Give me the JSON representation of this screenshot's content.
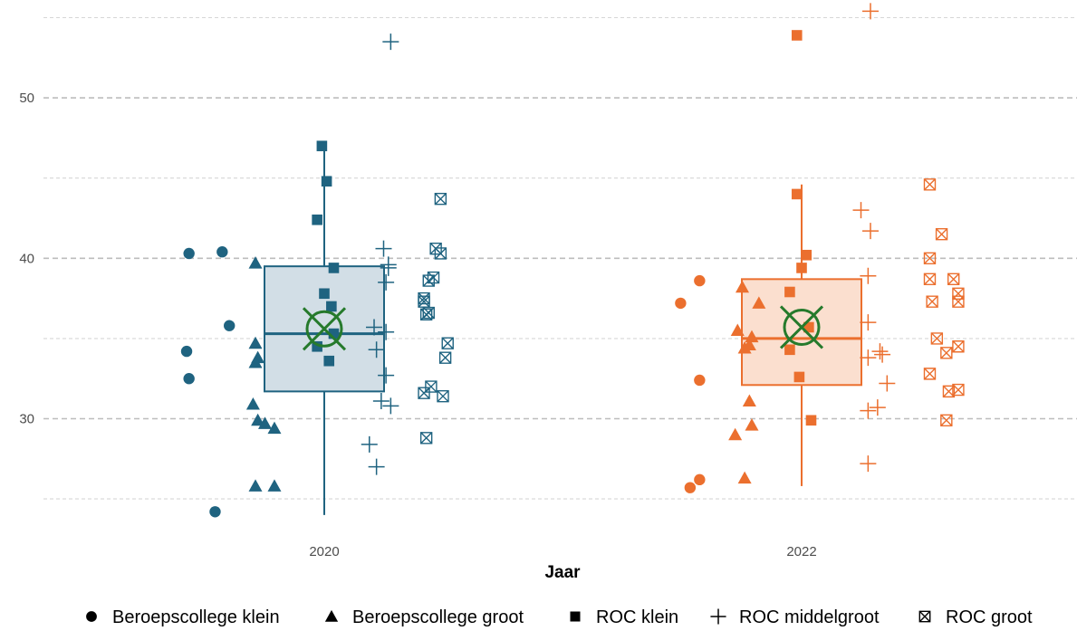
{
  "chart_data": {
    "type": "boxplot-with-jittered-points",
    "xlabel": "Jaar",
    "ylabel": "",
    "ylim": [
      22.5,
      56
    ],
    "y_ticks": [
      30,
      40,
      50
    ],
    "grid": "horizontal-dashed",
    "legend_position": "bottom",
    "colors": {
      "2020": "#1f6380",
      "2022": "#eb6f2e",
      "mean_marker": "#267a2c"
    },
    "series": [
      {
        "name": "Beroepscollege klein",
        "shape": "circle"
      },
      {
        "name": "Beroepscollege groot",
        "shape": "triangle"
      },
      {
        "name": "ROC klein",
        "shape": "square"
      },
      {
        "name": "ROC middelgroot",
        "shape": "plus"
      },
      {
        "name": "ROC groot",
        "shape": "square-cross"
      }
    ],
    "groups": [
      {
        "label": "2020",
        "box": {
          "q1": 31.7,
          "median": 35.3,
          "q3": 39.5,
          "whisker_low": 24.0,
          "whisker_high": 47.0
        },
        "mean": 35.6,
        "points": {
          "Beroepscollege klein": [
            [
              -0.57,
              40.3
            ],
            [
              -0.43,
              40.4
            ],
            [
              -0.4,
              35.8
            ],
            [
              -0.58,
              34.2
            ],
            [
              -0.57,
              32.5
            ],
            [
              -0.46,
              24.2
            ]
          ],
          "Beroepscollege groot": [
            [
              -0.29,
              39.7
            ],
            [
              -0.29,
              34.7
            ],
            [
              -0.28,
              33.8
            ],
            [
              -0.29,
              33.5
            ],
            [
              -0.3,
              30.9
            ],
            [
              -0.28,
              29.9
            ],
            [
              -0.25,
              29.7
            ],
            [
              -0.21,
              29.4
            ],
            [
              -0.29,
              25.8
            ],
            [
              -0.21,
              25.8
            ]
          ],
          "ROC klein": [
            [
              -0.01,
              47.0
            ],
            [
              0.01,
              44.8
            ],
            [
              -0.03,
              42.4
            ],
            [
              0.04,
              39.4
            ],
            [
              0.0,
              37.8
            ],
            [
              0.03,
              37.0
            ],
            [
              0.04,
              35.3
            ],
            [
              -0.03,
              34.5
            ],
            [
              0.02,
              33.6
            ]
          ],
          "ROC middelgroot": [
            [
              0.28,
              53.5
            ],
            [
              0.25,
              40.6
            ],
            [
              0.27,
              39.6
            ],
            [
              0.27,
              39.4
            ],
            [
              0.26,
              38.5
            ],
            [
              0.21,
              35.7
            ],
            [
              0.26,
              35.4
            ],
            [
              0.22,
              34.3
            ],
            [
              0.26,
              32.7
            ],
            [
              0.24,
              31.1
            ],
            [
              0.28,
              30.8
            ],
            [
              0.19,
              28.4
            ],
            [
              0.22,
              27.0
            ]
          ],
          "ROC groot": [
            [
              0.49,
              43.7
            ],
            [
              0.47,
              40.6
            ],
            [
              0.49,
              40.3
            ],
            [
              0.46,
              38.8
            ],
            [
              0.44,
              38.6
            ],
            [
              0.42,
              37.5
            ],
            [
              0.42,
              37.3
            ],
            [
              0.44,
              36.6
            ],
            [
              0.43,
              36.5
            ],
            [
              0.52,
              34.7
            ],
            [
              0.51,
              33.8
            ],
            [
              0.42,
              31.6
            ],
            [
              0.45,
              32.0
            ],
            [
              0.5,
              31.4
            ],
            [
              0.43,
              28.8
            ]
          ]
        }
      },
      {
        "label": "2022",
        "box": {
          "q1": 32.1,
          "median": 35.0,
          "q3": 38.7,
          "whisker_low": 25.8,
          "whisker_high": 44.6
        },
        "mean": 35.7,
        "points": {
          "Beroepscollege klein": [
            [
              -0.51,
              37.2
            ],
            [
              -0.43,
              38.6
            ],
            [
              -0.43,
              32.4
            ],
            [
              -0.43,
              26.2
            ],
            [
              -0.47,
              25.7
            ]
          ],
          "Beroepscollege groot": [
            [
              -0.25,
              38.2
            ],
            [
              -0.18,
              37.2
            ],
            [
              -0.27,
              35.5
            ],
            [
              -0.21,
              35.1
            ],
            [
              -0.24,
              34.4
            ],
            [
              -0.22,
              34.6
            ],
            [
              -0.22,
              31.1
            ],
            [
              -0.21,
              29.6
            ],
            [
              -0.28,
              29.0
            ],
            [
              -0.24,
              26.3
            ]
          ],
          "ROC klein": [
            [
              -0.02,
              53.9
            ],
            [
              -0.02,
              44.0
            ],
            [
              0.02,
              40.2
            ],
            [
              0.0,
              39.4
            ],
            [
              -0.05,
              37.9
            ],
            [
              0.03,
              35.7
            ],
            [
              -0.05,
              34.3
            ],
            [
              -0.01,
              32.6
            ],
            [
              0.04,
              29.9
            ]
          ],
          "ROC middelgroot": [
            [
              0.29,
              55.4
            ],
            [
              0.25,
              43.0
            ],
            [
              0.29,
              41.7
            ],
            [
              0.28,
              38.9
            ],
            [
              0.28,
              36.0
            ],
            [
              0.28,
              33.8
            ],
            [
              0.34,
              34.0
            ],
            [
              0.33,
              34.2
            ],
            [
              0.36,
              32.2
            ],
            [
              0.28,
              30.5
            ],
            [
              0.32,
              30.7
            ],
            [
              0.28,
              27.2
            ]
          ],
          "ROC groot": [
            [
              0.54,
              44.6
            ],
            [
              0.59,
              41.5
            ],
            [
              0.54,
              40.0
            ],
            [
              0.54,
              38.7
            ],
            [
              0.64,
              38.7
            ],
            [
              0.55,
              37.3
            ],
            [
              0.66,
              37.3
            ],
            [
              0.66,
              37.8
            ],
            [
              0.57,
              35.0
            ],
            [
              0.66,
              34.5
            ],
            [
              0.61,
              34.1
            ],
            [
              0.54,
              32.8
            ],
            [
              0.62,
              31.7
            ],
            [
              0.66,
              31.8
            ],
            [
              0.61,
              29.9
            ]
          ]
        }
      }
    ]
  }
}
